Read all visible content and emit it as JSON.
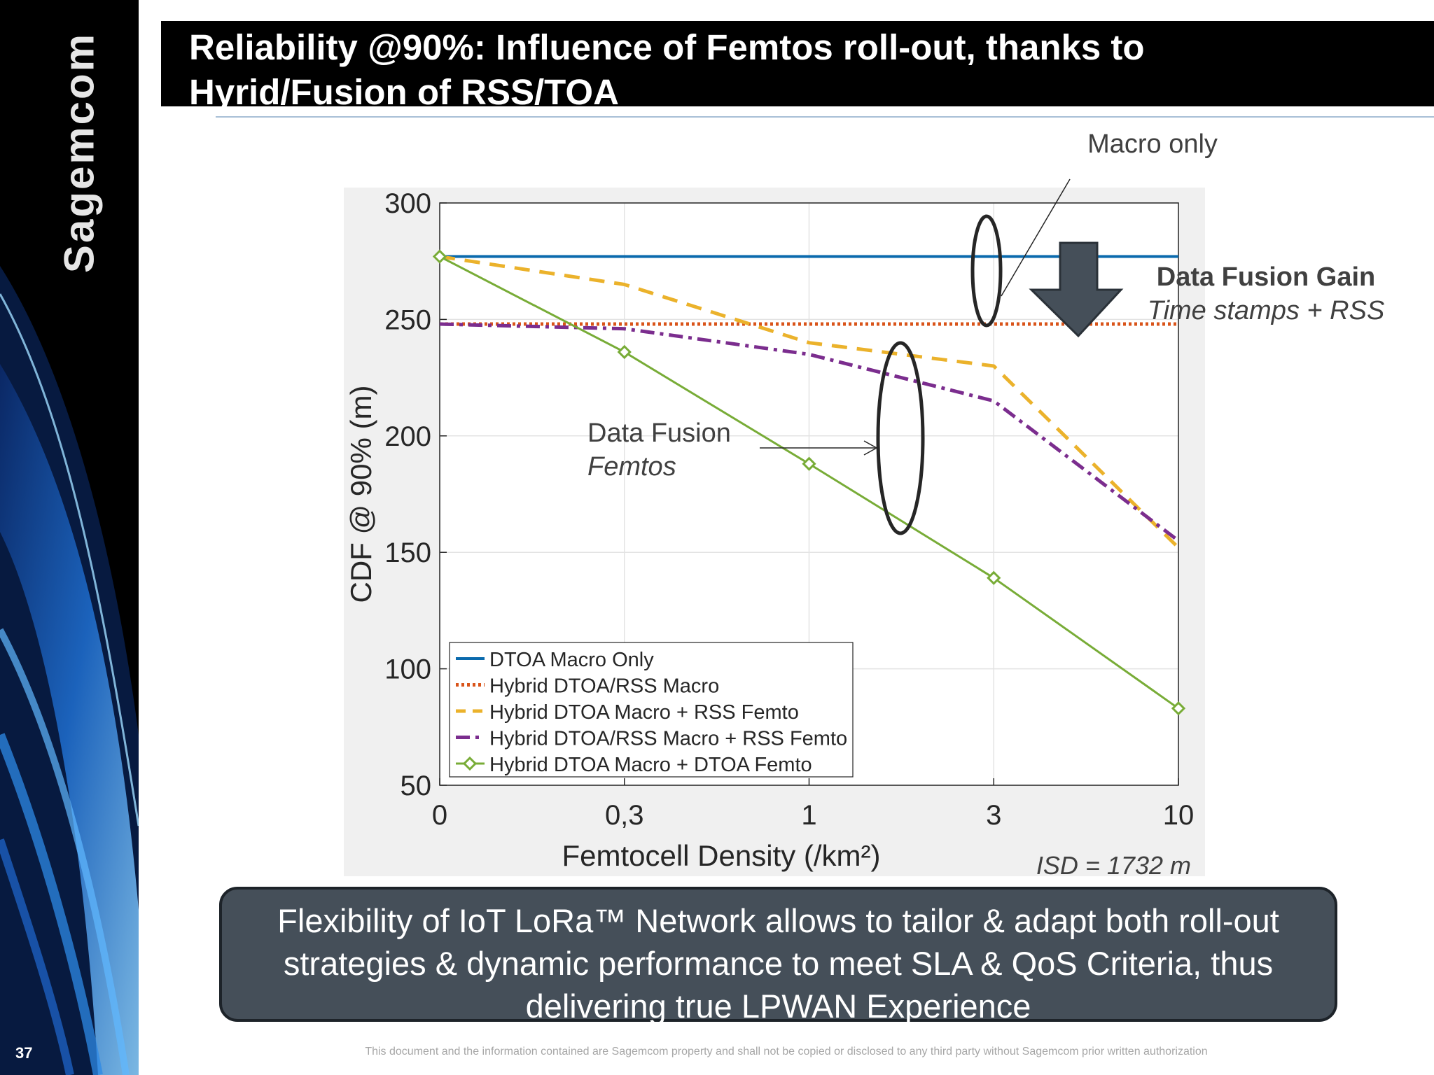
{
  "slide": {
    "brand": "Sagemcom",
    "page_number": "37",
    "title": "Reliability @90%: Influence of Femtos roll-out, thanks to Hyrid/Fusion of RSS/TOA",
    "bottom_message": "Flexibility of IoT LoRa™ Network allows to tailor & adapt both roll-out strategies & dynamic performance to meet SLA & QoS Criteria, thus delivering true LPWAN Experience",
    "disclaimer": "This document and the information contained are Sagemcom property and shall not be copied or disclosed to any third party without Sagemcom prior written authorization"
  },
  "annotations": {
    "macro_only": "Macro only",
    "fusion_gain_title": "Data Fusion Gain",
    "fusion_gain_sub": "Time stamps + RSS",
    "fusion_femtos_title": "Data Fusion",
    "fusion_femtos_sub": "Femtos",
    "isd": "ISD = 1732 m"
  },
  "colors": {
    "blue": "#0a6aad",
    "orange": "#d9541a",
    "yellow": "#ebb22b",
    "purple": "#7b2d8e",
    "green": "#78ac37",
    "arrow": "#454f59"
  },
  "chart_data": {
    "type": "line",
    "title": "",
    "xlabel": "Femtocell Density (/km²)",
    "ylabel": "CDF @ 90% (m)",
    "categories": [
      "0",
      "0,3",
      "1",
      "3",
      "10"
    ],
    "ylim": [
      50,
      300
    ],
    "yticks": [
      50,
      100,
      150,
      200,
      250,
      300
    ],
    "grid": true,
    "legend_position": "bottom-left",
    "series": [
      {
        "name": "DTOA Macro Only",
        "color": "#0a6aad",
        "style": "solid",
        "values": [
          277,
          277,
          277,
          277,
          277
        ]
      },
      {
        "name": "Hybrid DTOA/RSS Macro",
        "color": "#d9541a",
        "style": "dotted",
        "values": [
          248,
          248,
          248,
          248,
          248
        ]
      },
      {
        "name": "Hybrid DTOA Macro + RSS Femto",
        "color": "#ebb22b",
        "style": "dashed",
        "values": [
          277,
          265,
          240,
          230,
          152
        ]
      },
      {
        "name": "Hybrid DTOA/RSS Macro + RSS Femto",
        "color": "#7b2d8e",
        "style": "dashdot",
        "values": [
          248,
          246,
          235,
          215,
          155
        ]
      },
      {
        "name": "Hybrid DTOA Macro + DTOA Femto",
        "color": "#78ac37",
        "style": "solid-diamond",
        "values": [
          277,
          236,
          188,
          139,
          83
        ]
      }
    ]
  }
}
